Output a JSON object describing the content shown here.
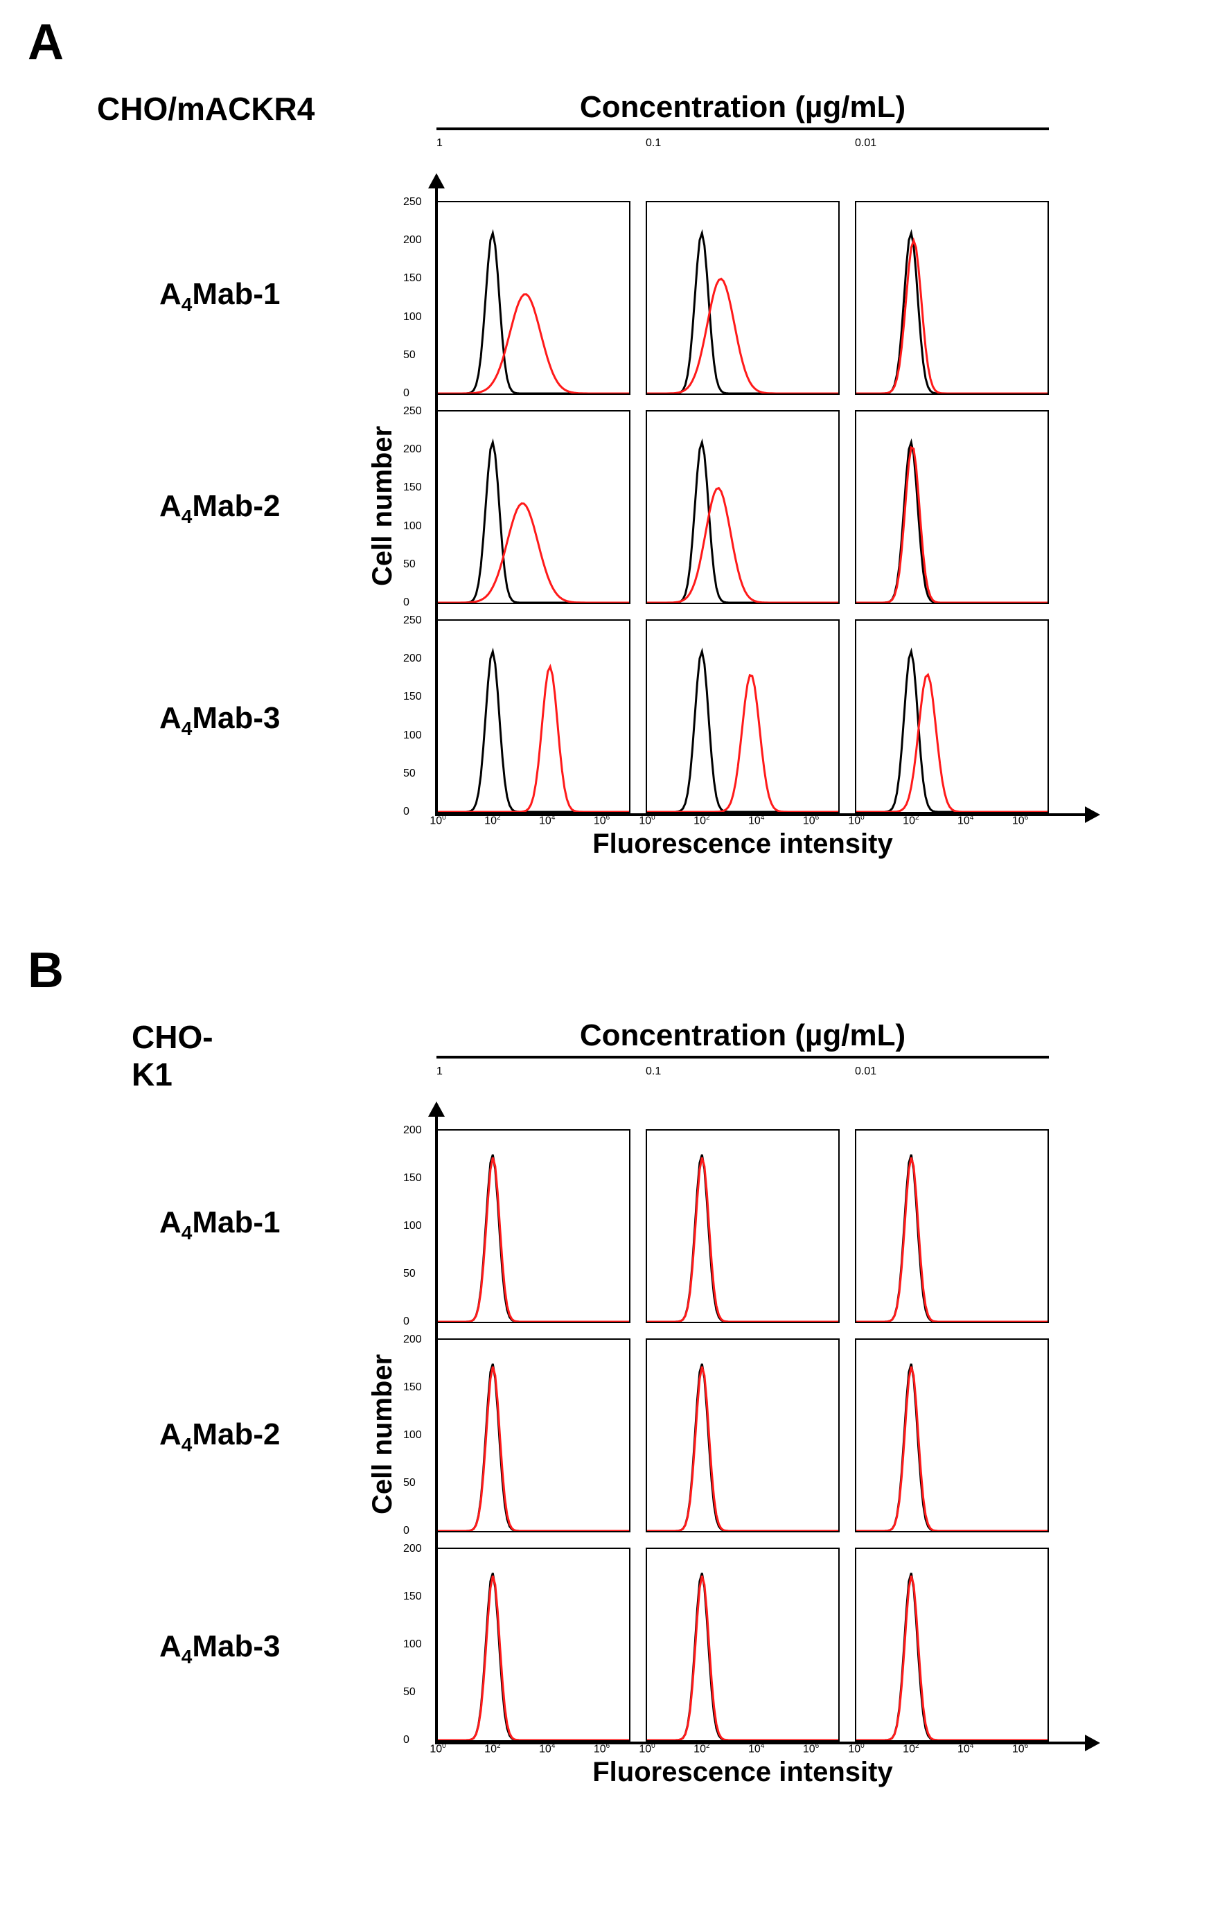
{
  "panelA": {
    "letter": "A",
    "cell_line": "CHO/mACKR4",
    "concentration_title": "Concentration (µg/mL)",
    "columns": [
      "1",
      "0.1",
      "0.01"
    ],
    "antibodies": [
      "A4Mab-1",
      "A4Mab-2",
      "A4Mab-3"
    ],
    "y_axis_label": "Cell number",
    "x_axis_label": "Fluorescence intensity",
    "yticks": [
      0,
      50,
      100,
      150,
      200,
      250
    ],
    "ymax": 250,
    "xticks_log": [
      0,
      2,
      4,
      6
    ],
    "xmax_log": 7,
    "control_color": "#000000",
    "sample_color": "#ff1a1a",
    "stroke_width": 3,
    "histograms": {
      "A4Mab-1": {
        "1": {
          "control_center": 2.0,
          "control_peak": 210,
          "control_width": 0.35,
          "sample_center": 3.2,
          "sample_peak": 130,
          "sample_width": 0.8
        },
        "0.1": {
          "control_center": 2.0,
          "control_peak": 210,
          "control_width": 0.35,
          "sample_center": 2.7,
          "sample_peak": 150,
          "sample_width": 0.7
        },
        "0.01": {
          "control_center": 2.0,
          "control_peak": 210,
          "control_width": 0.35,
          "sample_center": 2.1,
          "sample_peak": 200,
          "sample_width": 0.4
        }
      },
      "A4Mab-2": {
        "1": {
          "control_center": 2.0,
          "control_peak": 210,
          "control_width": 0.35,
          "sample_center": 3.1,
          "sample_peak": 130,
          "sample_width": 0.8
        },
        "0.1": {
          "control_center": 2.0,
          "control_peak": 210,
          "control_width": 0.35,
          "sample_center": 2.6,
          "sample_peak": 150,
          "sample_width": 0.65
        },
        "0.01": {
          "control_center": 2.0,
          "control_peak": 210,
          "control_width": 0.35,
          "sample_center": 2.05,
          "sample_peak": 205,
          "sample_width": 0.37
        }
      },
      "A4Mab-3": {
        "1": {
          "control_center": 2.0,
          "control_peak": 210,
          "control_width": 0.35,
          "sample_center": 4.1,
          "sample_peak": 190,
          "sample_width": 0.4
        },
        "0.1": {
          "control_center": 2.0,
          "control_peak": 210,
          "control_width": 0.35,
          "sample_center": 3.8,
          "sample_peak": 180,
          "sample_width": 0.45
        },
        "0.01": {
          "control_center": 2.0,
          "control_peak": 210,
          "control_width": 0.35,
          "sample_center": 2.6,
          "sample_peak": 180,
          "sample_width": 0.45
        }
      }
    }
  },
  "panelB": {
    "letter": "B",
    "cell_line": "CHO-K1",
    "concentration_title": "Concentration (µg/mL)",
    "columns": [
      "1",
      "0.1",
      "0.01"
    ],
    "antibodies": [
      "A4Mab-1",
      "A4Mab-2",
      "A4Mab-3"
    ],
    "y_axis_label": "Cell number",
    "x_axis_label": "Fluorescence intensity",
    "yticks": [
      0,
      50,
      100,
      150,
      200
    ],
    "ymax": 200,
    "xticks_log": [
      0,
      2,
      4,
      6
    ],
    "xmax_log": 7,
    "control_color": "#000000",
    "sample_color": "#ff1a1a",
    "stroke_width": 3,
    "histograms": {
      "A4Mab-1": {
        "1": {
          "control_center": 2.0,
          "control_peak": 175,
          "control_width": 0.33,
          "sample_center": 2.02,
          "sample_peak": 172,
          "sample_width": 0.34
        },
        "0.1": {
          "control_center": 2.0,
          "control_peak": 175,
          "control_width": 0.33,
          "sample_center": 2.02,
          "sample_peak": 172,
          "sample_width": 0.34
        },
        "0.01": {
          "control_center": 2.0,
          "control_peak": 175,
          "control_width": 0.33,
          "sample_center": 2.02,
          "sample_peak": 172,
          "sample_width": 0.34
        }
      },
      "A4Mab-2": {
        "1": {
          "control_center": 2.0,
          "control_peak": 175,
          "control_width": 0.33,
          "sample_center": 2.02,
          "sample_peak": 172,
          "sample_width": 0.34
        },
        "0.1": {
          "control_center": 2.0,
          "control_peak": 175,
          "control_width": 0.33,
          "sample_center": 2.02,
          "sample_peak": 172,
          "sample_width": 0.34
        },
        "0.01": {
          "control_center": 2.0,
          "control_peak": 175,
          "control_width": 0.33,
          "sample_center": 2.02,
          "sample_peak": 172,
          "sample_width": 0.34
        }
      },
      "A4Mab-3": {
        "1": {
          "control_center": 2.0,
          "control_peak": 175,
          "control_width": 0.33,
          "sample_center": 2.02,
          "sample_peak": 172,
          "sample_width": 0.34
        },
        "0.1": {
          "control_center": 2.0,
          "control_peak": 175,
          "control_width": 0.33,
          "sample_center": 2.02,
          "sample_peak": 172,
          "sample_width": 0.34
        },
        "0.01": {
          "control_center": 2.0,
          "control_peak": 175,
          "control_width": 0.33,
          "sample_center": 2.02,
          "sample_peak": 172,
          "sample_width": 0.34
        }
      }
    }
  }
}
